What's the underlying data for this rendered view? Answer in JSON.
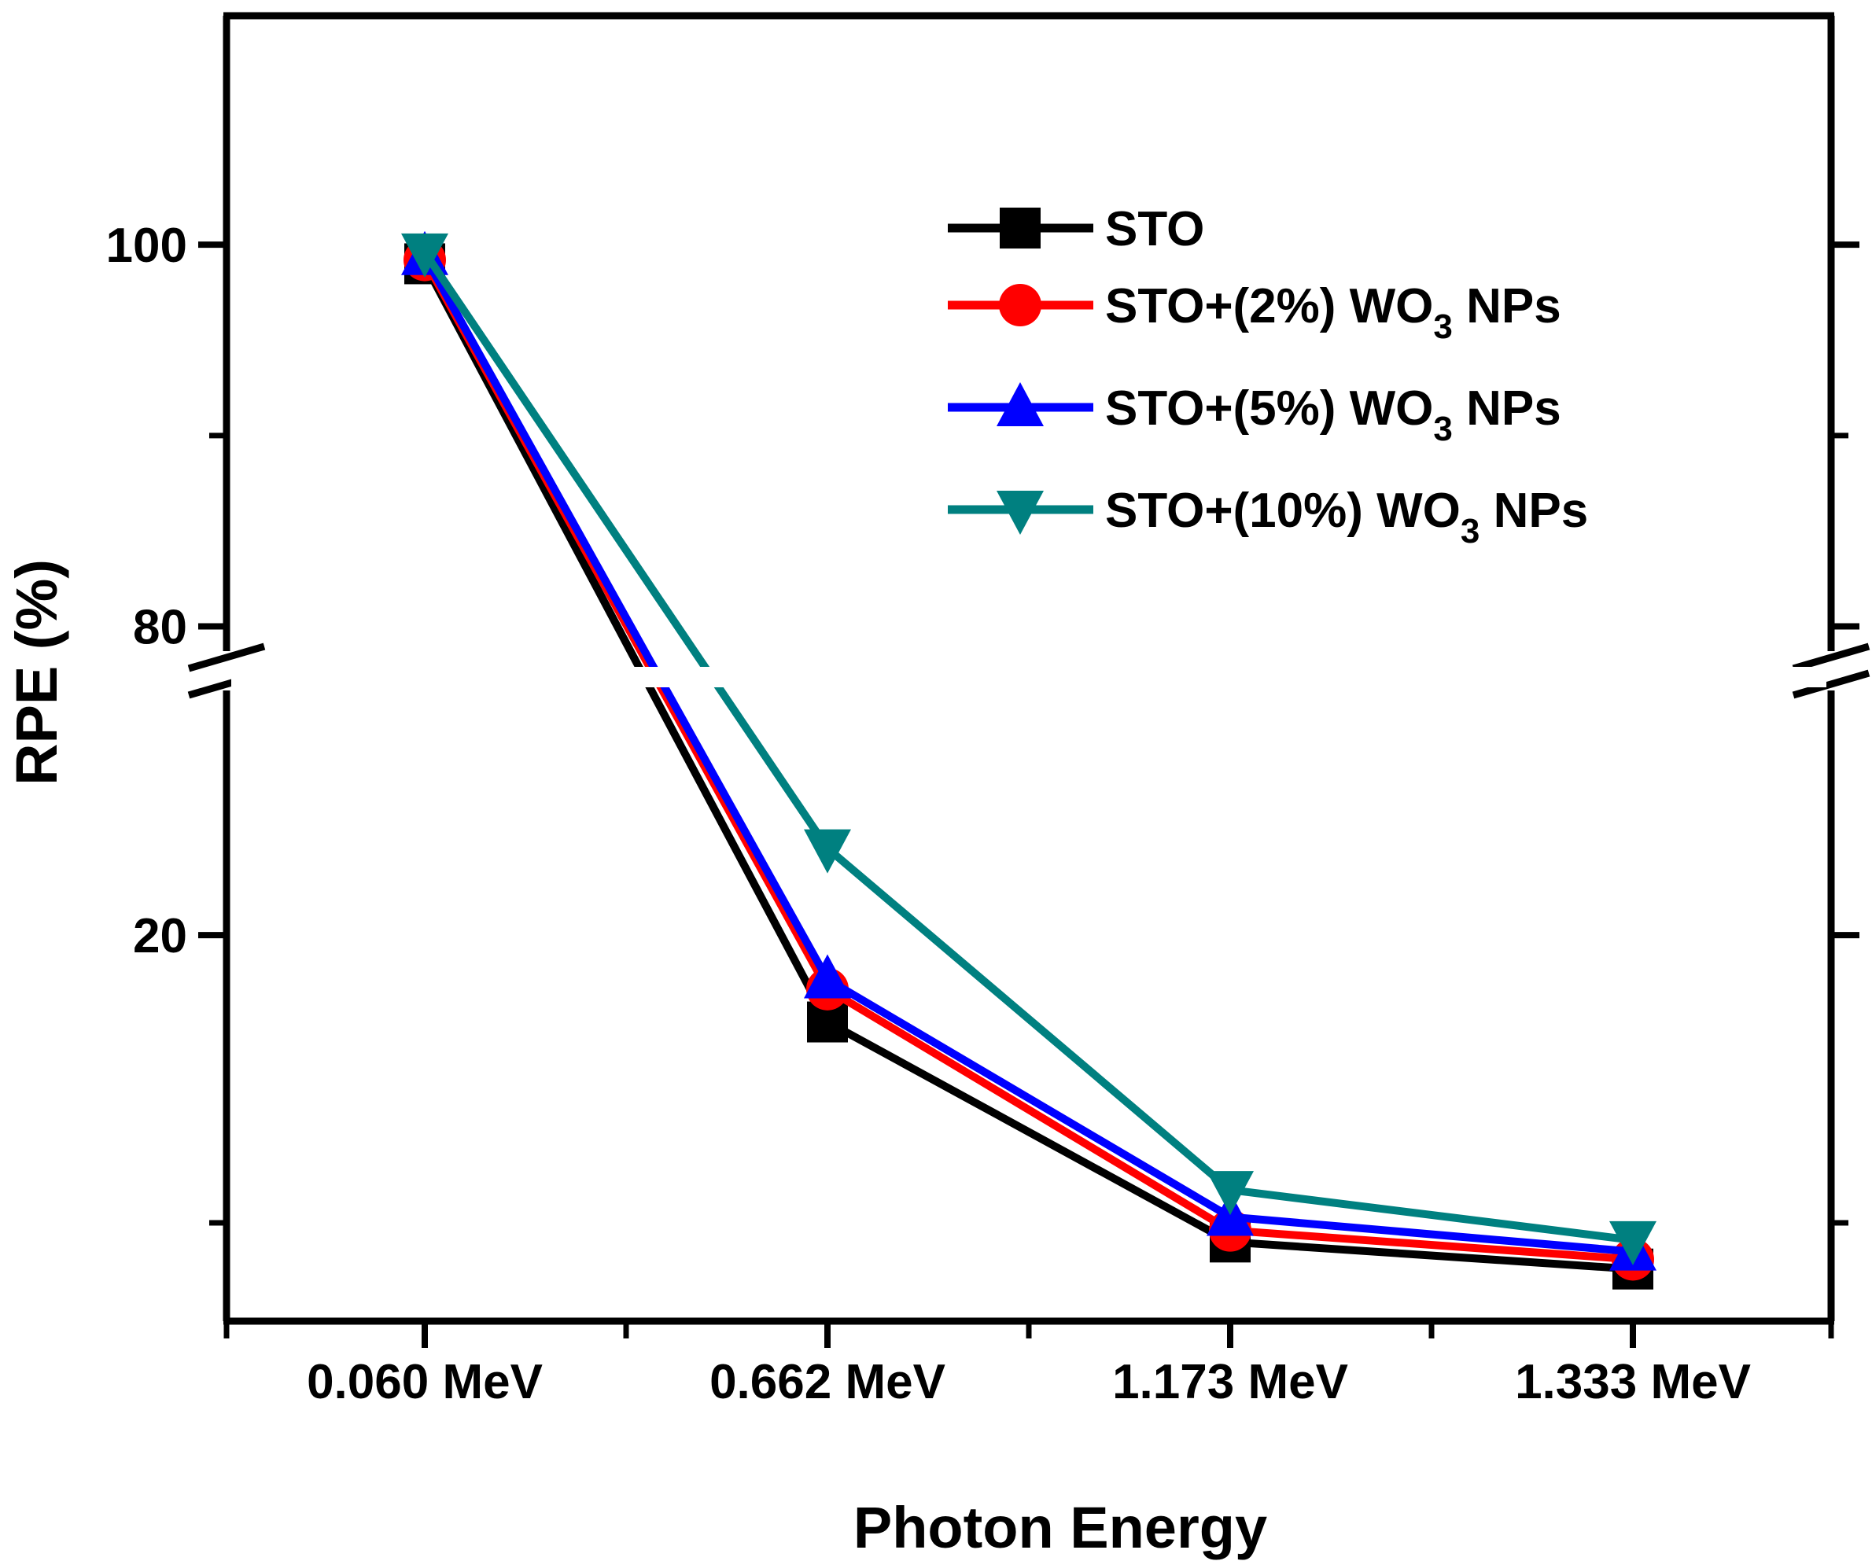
{
  "chart_data": {
    "type": "line",
    "title": "",
    "xlabel": "Photon Energy",
    "ylabel": "RPE (%)",
    "categories": [
      "0.060 MeV",
      "0.662 MeV",
      "1.173 MeV",
      "1.333 MeV"
    ],
    "y_axis": {
      "broken": true,
      "lower_segment": {
        "range": [
          0,
          33
        ],
        "ticks": [
          20
        ]
      },
      "upper_segment": {
        "range": [
          78,
          112
        ],
        "ticks": [
          80,
          100
        ],
        "minor_ticks": [
          90
        ]
      },
      "break_between": [
        33,
        78
      ],
      "tick_labels": [
        "100",
        "80",
        "20"
      ]
    },
    "legend_position": "top-right",
    "series": [
      {
        "name": "STO",
        "label_main": "STO",
        "label_sub": "",
        "label_tail": "",
        "color": "#000000",
        "marker": "square",
        "values": [
          99.0,
          15.5,
          4.1,
          2.7
        ]
      },
      {
        "name": "STO+(2%) WO3 NPs",
        "label_main": "STO+(2%) WO",
        "label_sub": "3",
        "label_tail": " NPs",
        "color": "#ff0000",
        "marker": "circle",
        "values": [
          99.2,
          17.2,
          4.7,
          3.2
        ]
      },
      {
        "name": "STO+(5%) WO3 NPs",
        "label_main": "STO+(5%) WO",
        "label_sub": "3",
        "label_tail": " NPs",
        "color": "#0000ff",
        "marker": "triangle-up",
        "values": [
          99.4,
          17.7,
          5.4,
          3.6
        ]
      },
      {
        "name": "STO+(10%) WO3 NPs",
        "label_main": "STO+(10%) WO",
        "label_sub": "3",
        "label_tail": " NPs",
        "color": "#008080",
        "marker": "triangle-down",
        "values": [
          99.6,
          24.5,
          6.8,
          4.2
        ]
      }
    ]
  }
}
